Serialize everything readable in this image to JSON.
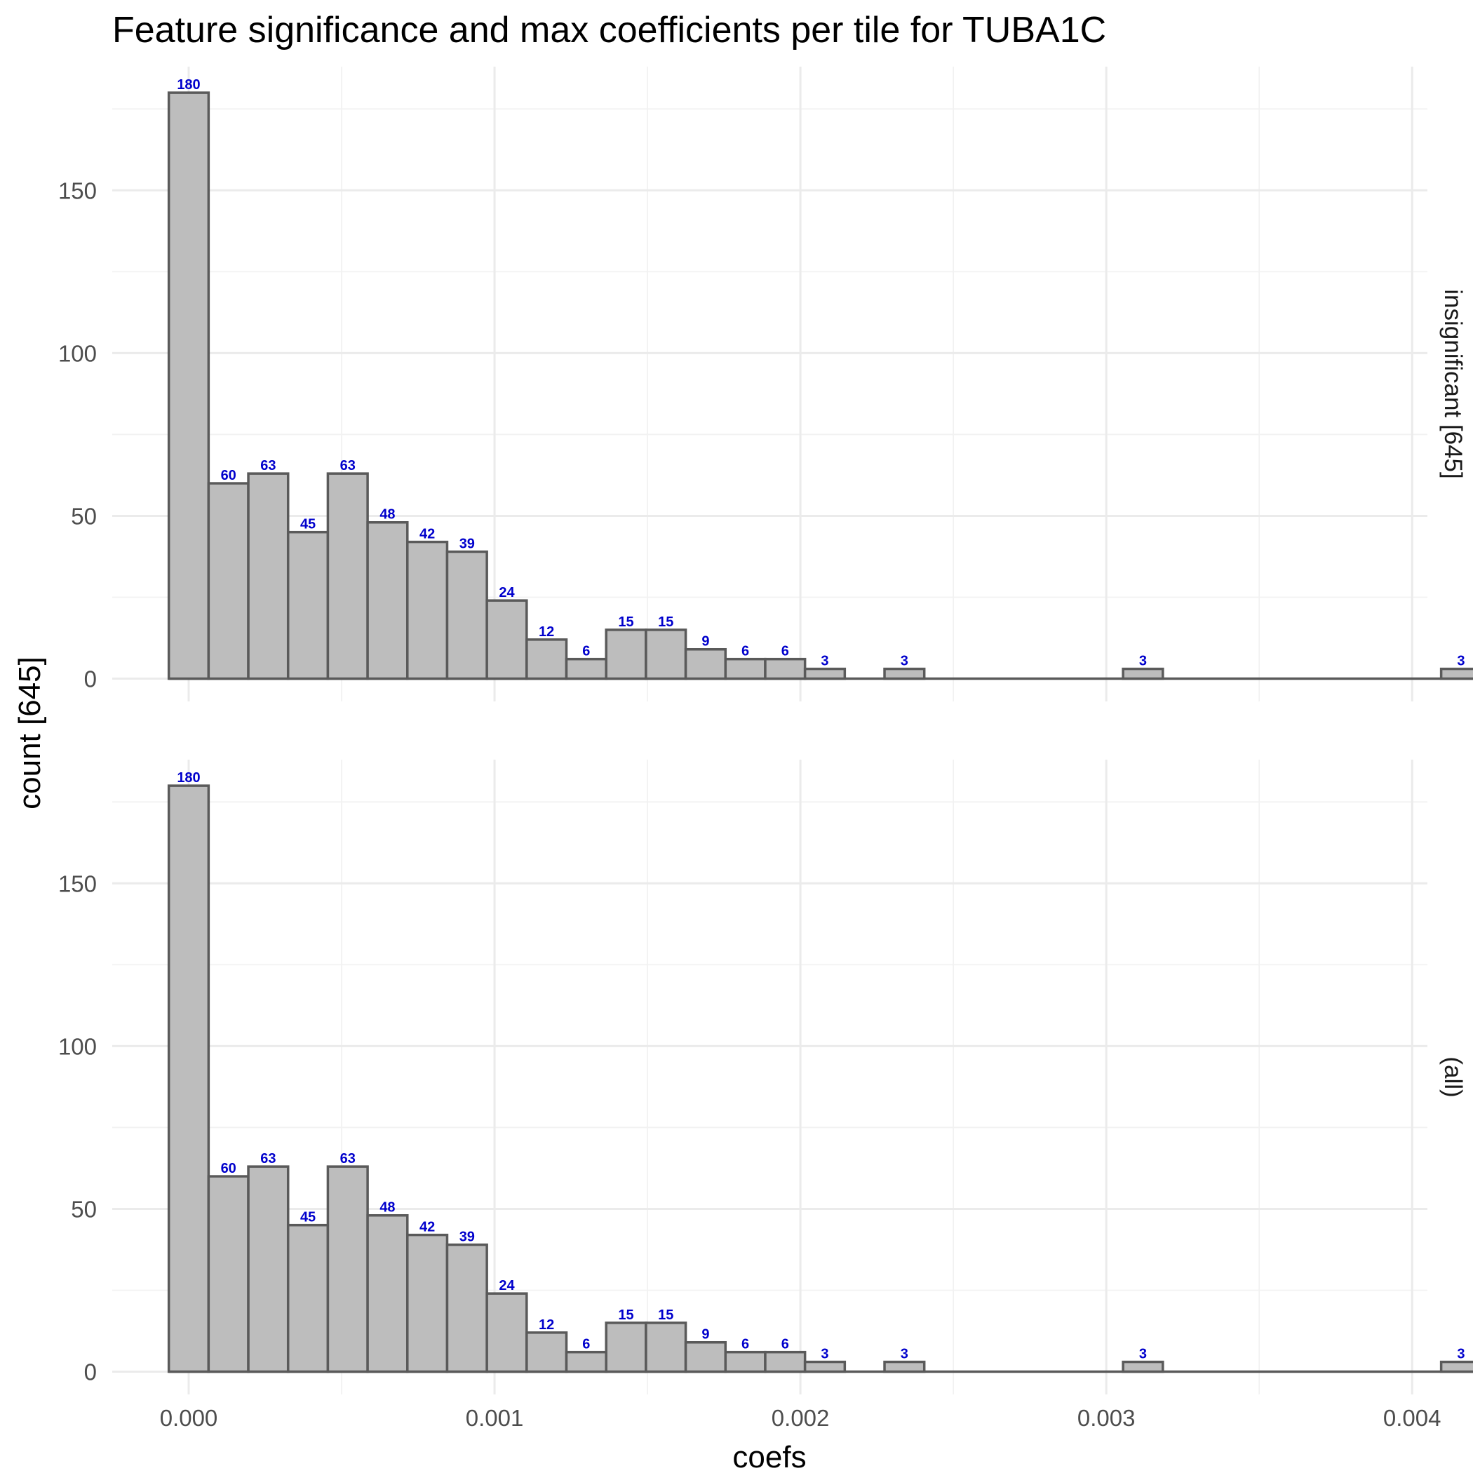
{
  "chart_data": {
    "type": "bar",
    "subtype": "histogram",
    "title": "Feature significance and max coefficients per tile for TUBA1C",
    "xlabel": "coefs",
    "ylabel": "count [645]",
    "xlim": [
      -0.00025,
      0.00405
    ],
    "ylim": [
      -7,
      188
    ],
    "x_ticks": [
      {
        "value": 0.0,
        "label": "0.000"
      },
      {
        "value": 0.001,
        "label": "0.001"
      },
      {
        "value": 0.002,
        "label": "0.002"
      },
      {
        "value": 0.003,
        "label": "0.003"
      },
      {
        "value": 0.004,
        "label": "0.004"
      }
    ],
    "y_ticks": [
      {
        "value": 0,
        "label": "0"
      },
      {
        "value": 50,
        "label": "50"
      },
      {
        "value": 100,
        "label": "100"
      },
      {
        "value": 150,
        "label": "150"
      }
    ],
    "x_minor": [
      0.0005,
      0.0015,
      0.0025,
      0.0035
    ],
    "y_minor": [
      25,
      75,
      125,
      175
    ],
    "bin_width": 0.00013,
    "bin_start": -6.5e-05,
    "grid": true,
    "legend": "none",
    "colors": {
      "bar_fill": "#bdbdbd",
      "bar_stroke": "#5a5a5a",
      "label": "#0000cc"
    },
    "panels": [
      {
        "strip": "insignificant [645]",
        "counts": [
          180,
          60,
          63,
          45,
          63,
          48,
          42,
          39,
          24,
          12,
          6,
          15,
          15,
          9,
          6,
          6,
          3,
          0,
          3,
          0,
          0,
          0,
          0,
          0,
          3,
          0,
          0,
          0,
          0,
          0,
          0,
          0,
          3
        ],
        "labels": [
          "180",
          "60",
          "63",
          "45",
          "63",
          "48",
          "42",
          "39",
          "24",
          "12",
          "6",
          "15",
          "15",
          "9",
          "6",
          "6",
          "3",
          "",
          "3",
          "",
          "",
          "",
          "",
          "",
          "3",
          "",
          "",
          "",
          "",
          "",
          "",
          "",
          "3"
        ]
      },
      {
        "strip": "(all)",
        "counts": [
          180,
          60,
          63,
          45,
          63,
          48,
          42,
          39,
          24,
          12,
          6,
          15,
          15,
          9,
          6,
          6,
          3,
          0,
          3,
          0,
          0,
          0,
          0,
          0,
          3,
          0,
          0,
          0,
          0,
          0,
          0,
          0,
          3
        ],
        "labels": [
          "180",
          "60",
          "63",
          "45",
          "63",
          "48",
          "42",
          "39",
          "24",
          "12",
          "6",
          "15",
          "15",
          "9",
          "6",
          "6",
          "3",
          "",
          "3",
          "",
          "",
          "",
          "",
          "",
          "3",
          "",
          "",
          "",
          "",
          "",
          "",
          "",
          "3"
        ]
      }
    ]
  }
}
